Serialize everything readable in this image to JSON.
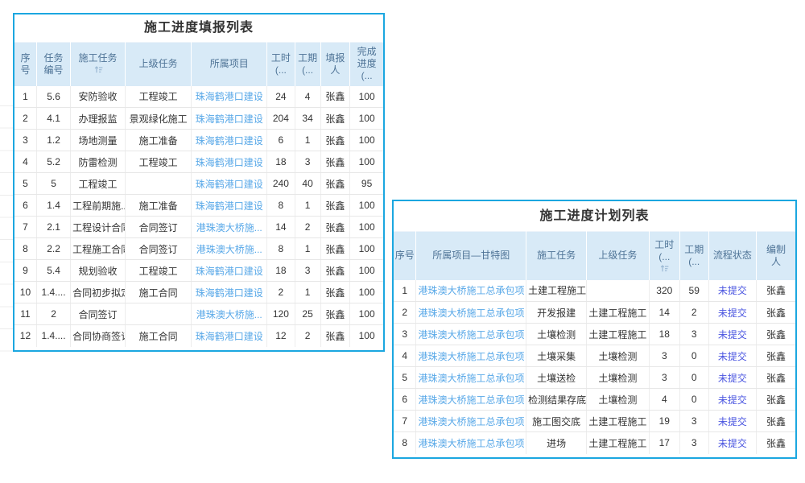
{
  "colors": {
    "card_border": "#1ba7e0",
    "header_bg": "#d8eaf7",
    "header_text": "#4e7396",
    "body_text": "#333333",
    "link": "#58a8e8",
    "status_link": "#4a55e0"
  },
  "report_table": {
    "title": "施工进度填报列表",
    "columns": [
      {
        "id": "seq",
        "label": "序\n号",
        "sortable": false
      },
      {
        "id": "task-no",
        "label": "任务\n编号",
        "sortable": false
      },
      {
        "id": "task",
        "label": "施工任务",
        "sortable": true
      },
      {
        "id": "parent-task",
        "label": "上级任务",
        "sortable": false
      },
      {
        "id": "project",
        "label": "所属项目",
        "sortable": false,
        "link": true
      },
      {
        "id": "hours",
        "label": "工时\n(...",
        "sortable": false
      },
      {
        "id": "duration",
        "label": "工期\n(...",
        "sortable": false
      },
      {
        "id": "reporter",
        "label": "填报\n人",
        "sortable": false
      },
      {
        "id": "progress",
        "label": "完成\n进度\n(...",
        "sortable": false
      }
    ],
    "rows": [
      [
        "1",
        "5.6",
        "安防验收",
        "工程竣工",
        "珠海鹤港口建设",
        "24",
        "4",
        "张鑫",
        "100"
      ],
      [
        "2",
        "4.1",
        "办理报监",
        "景观绿化施工",
        "珠海鹤港口建设",
        "204",
        "34",
        "张鑫",
        "100"
      ],
      [
        "3",
        "1.2",
        "场地测量",
        "施工准备",
        "珠海鹤港口建设",
        "6",
        "1",
        "张鑫",
        "100"
      ],
      [
        "4",
        "5.2",
        "防雷检测",
        "工程竣工",
        "珠海鹤港口建设",
        "18",
        "3",
        "张鑫",
        "100"
      ],
      [
        "5",
        "5",
        "工程竣工",
        "",
        "珠海鹤港口建设",
        "240",
        "40",
        "张鑫",
        "95"
      ],
      [
        "6",
        "1.4",
        "工程前期施...",
        "施工准备",
        "珠海鹤港口建设",
        "8",
        "1",
        "张鑫",
        "100"
      ],
      [
        "7",
        "2.1",
        "工程设计合同",
        "合同签订",
        "港珠澳大桥施...",
        "14",
        "2",
        "张鑫",
        "100"
      ],
      [
        "8",
        "2.2",
        "工程施工合同",
        "合同签订",
        "港珠澳大桥施...",
        "8",
        "1",
        "张鑫",
        "100"
      ],
      [
        "9",
        "5.4",
        "规划验收",
        "工程竣工",
        "珠海鹤港口建设",
        "18",
        "3",
        "张鑫",
        "100"
      ],
      [
        "10",
        "1.4....",
        "合同初步拟定",
        "施工合同",
        "珠海鹤港口建设",
        "2",
        "1",
        "张鑫",
        "100"
      ],
      [
        "11",
        "2",
        "合同签订",
        "",
        "港珠澳大桥施...",
        "120",
        "25",
        "张鑫",
        "100"
      ],
      [
        "12",
        "1.4....",
        "合同协商签订",
        "施工合同",
        "珠海鹤港口建设",
        "12",
        "2",
        "张鑫",
        "100"
      ]
    ]
  },
  "plan_table": {
    "title": "施工进度计划列表",
    "columns": [
      {
        "id": "seq",
        "label": "序号",
        "sortable": false
      },
      {
        "id": "project-gantt",
        "label": "所属项目—甘特图",
        "sortable": false,
        "link": true
      },
      {
        "id": "task",
        "label": "施工任务",
        "sortable": false
      },
      {
        "id": "parent-task",
        "label": "上级任务",
        "sortable": false
      },
      {
        "id": "hours",
        "label": "工时\n(...",
        "sortable": true,
        "sort_below": true
      },
      {
        "id": "duration",
        "label": "工期\n(...",
        "sortable": false
      },
      {
        "id": "flow-status",
        "label": "流程状态",
        "sortable": false,
        "status": true
      },
      {
        "id": "author",
        "label": "编制\n人",
        "sortable": false
      }
    ],
    "rows": [
      [
        "1",
        "港珠澳大桥施工总承包项目",
        "土建工程施工",
        "",
        "320",
        "59",
        "未提交",
        "张鑫"
      ],
      [
        "2",
        "港珠澳大桥施工总承包项目",
        "开发报建",
        "土建工程施工",
        "14",
        "2",
        "未提交",
        "张鑫"
      ],
      [
        "3",
        "港珠澳大桥施工总承包项目",
        "土壤检测",
        "土建工程施工",
        "18",
        "3",
        "未提交",
        "张鑫"
      ],
      [
        "4",
        "港珠澳大桥施工总承包项目",
        "土壤采集",
        "土壤检测",
        "3",
        "0",
        "未提交",
        "张鑫"
      ],
      [
        "5",
        "港珠澳大桥施工总承包项目",
        "土壤送检",
        "土壤检测",
        "3",
        "0",
        "未提交",
        "张鑫"
      ],
      [
        "6",
        "港珠澳大桥施工总承包项目",
        "检测结果存底",
        "土壤检测",
        "4",
        "0",
        "未提交",
        "张鑫"
      ],
      [
        "7",
        "港珠澳大桥施工总承包项目",
        "施工图交底",
        "土建工程施工",
        "19",
        "3",
        "未提交",
        "张鑫"
      ],
      [
        "8",
        "港珠澳大桥施工总承包项目",
        "进场",
        "土建工程施工",
        "17",
        "3",
        "未提交",
        "张鑫"
      ]
    ]
  }
}
